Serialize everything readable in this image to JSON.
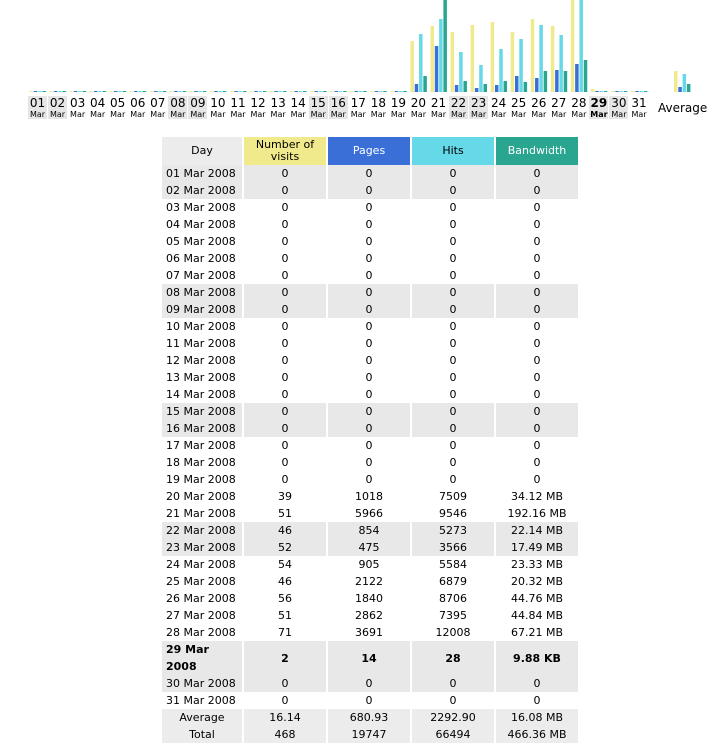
{
  "accent": {
    "visits": "#f0ea8c",
    "pages": "#3a6fd8",
    "hits": "#66d9e8",
    "bandwidth": "#2aa590"
  },
  "chart_data": {
    "type": "bar",
    "categories": [
      "01",
      "02",
      "03",
      "04",
      "05",
      "06",
      "07",
      "08",
      "09",
      "10",
      "11",
      "12",
      "13",
      "14",
      "15",
      "16",
      "17",
      "18",
      "19",
      "20",
      "21",
      "22",
      "23",
      "24",
      "25",
      "26",
      "27",
      "28",
      "29",
      "30",
      "31"
    ],
    "category_sub": "Mar",
    "series": [
      {
        "name": "Number of visits",
        "values": [
          0,
          0,
          0,
          0,
          0,
          0,
          0,
          0,
          0,
          0,
          0,
          0,
          0,
          0,
          0,
          0,
          0,
          0,
          0,
          39,
          51,
          46,
          52,
          54,
          46,
          56,
          51,
          71,
          2,
          0,
          0
        ]
      },
      {
        "name": "Pages",
        "values": [
          0,
          0,
          0,
          0,
          0,
          0,
          0,
          0,
          0,
          0,
          0,
          0,
          0,
          0,
          0,
          0,
          0,
          0,
          0,
          1018,
          5966,
          854,
          475,
          905,
          2122,
          1840,
          2862,
          3691,
          14,
          0,
          0
        ]
      },
      {
        "name": "Hits",
        "values": [
          0,
          0,
          0,
          0,
          0,
          0,
          0,
          0,
          0,
          0,
          0,
          0,
          0,
          0,
          0,
          0,
          0,
          0,
          0,
          7509,
          9546,
          5273,
          3566,
          5584,
          6879,
          8706,
          7395,
          12008,
          28,
          0,
          0
        ]
      },
      {
        "name": "Bandwidth",
        "values": [
          0,
          0,
          0,
          0,
          0,
          0,
          0,
          0,
          0,
          0,
          0,
          0,
          0,
          0,
          0,
          0,
          0,
          0,
          0,
          34.12,
          192.16,
          22.14,
          17.49,
          23.33,
          20.32,
          44.76,
          44.84,
          67.21,
          0.0096,
          0,
          0
        ]
      }
    ],
    "bandwidth_unit": "MB",
    "average": {
      "visits": 16.14,
      "pages": 680.93,
      "hits": 2292.9,
      "bandwidth": 16.08
    },
    "weekend_days": [
      "01",
      "02",
      "08",
      "09",
      "15",
      "16",
      "22",
      "23",
      "29",
      "30"
    ],
    "today": "29",
    "legend": "none",
    "grid": false
  },
  "avg_label": "Average",
  "table": {
    "headers": {
      "day": "Day",
      "visits": "Number of visits",
      "pages": "Pages",
      "hits": "Hits",
      "bandwidth": "Bandwidth"
    },
    "rows": [
      {
        "day": "01 Mar 2008",
        "visits": "0",
        "pages": "0",
        "hits": "0",
        "bandwidth": "0"
      },
      {
        "day": "02 Mar 2008",
        "visits": "0",
        "pages": "0",
        "hits": "0",
        "bandwidth": "0"
      },
      {
        "day": "03 Mar 2008",
        "visits": "0",
        "pages": "0",
        "hits": "0",
        "bandwidth": "0"
      },
      {
        "day": "04 Mar 2008",
        "visits": "0",
        "pages": "0",
        "hits": "0",
        "bandwidth": "0"
      },
      {
        "day": "05 Mar 2008",
        "visits": "0",
        "pages": "0",
        "hits": "0",
        "bandwidth": "0"
      },
      {
        "day": "06 Mar 2008",
        "visits": "0",
        "pages": "0",
        "hits": "0",
        "bandwidth": "0"
      },
      {
        "day": "07 Mar 2008",
        "visits": "0",
        "pages": "0",
        "hits": "0",
        "bandwidth": "0"
      },
      {
        "day": "08 Mar 2008",
        "visits": "0",
        "pages": "0",
        "hits": "0",
        "bandwidth": "0"
      },
      {
        "day": "09 Mar 2008",
        "visits": "0",
        "pages": "0",
        "hits": "0",
        "bandwidth": "0"
      },
      {
        "day": "10 Mar 2008",
        "visits": "0",
        "pages": "0",
        "hits": "0",
        "bandwidth": "0"
      },
      {
        "day": "11 Mar 2008",
        "visits": "0",
        "pages": "0",
        "hits": "0",
        "bandwidth": "0"
      },
      {
        "day": "12 Mar 2008",
        "visits": "0",
        "pages": "0",
        "hits": "0",
        "bandwidth": "0"
      },
      {
        "day": "13 Mar 2008",
        "visits": "0",
        "pages": "0",
        "hits": "0",
        "bandwidth": "0"
      },
      {
        "day": "14 Mar 2008",
        "visits": "0",
        "pages": "0",
        "hits": "0",
        "bandwidth": "0"
      },
      {
        "day": "15 Mar 2008",
        "visits": "0",
        "pages": "0",
        "hits": "0",
        "bandwidth": "0"
      },
      {
        "day": "16 Mar 2008",
        "visits": "0",
        "pages": "0",
        "hits": "0",
        "bandwidth": "0"
      },
      {
        "day": "17 Mar 2008",
        "visits": "0",
        "pages": "0",
        "hits": "0",
        "bandwidth": "0"
      },
      {
        "day": "18 Mar 2008",
        "visits": "0",
        "pages": "0",
        "hits": "0",
        "bandwidth": "0"
      },
      {
        "day": "19 Mar 2008",
        "visits": "0",
        "pages": "0",
        "hits": "0",
        "bandwidth": "0"
      },
      {
        "day": "20 Mar 2008",
        "visits": "39",
        "pages": "1018",
        "hits": "7509",
        "bandwidth": "34.12 MB"
      },
      {
        "day": "21 Mar 2008",
        "visits": "51",
        "pages": "5966",
        "hits": "9546",
        "bandwidth": "192.16 MB"
      },
      {
        "day": "22 Mar 2008",
        "visits": "46",
        "pages": "854",
        "hits": "5273",
        "bandwidth": "22.14 MB"
      },
      {
        "day": "23 Mar 2008",
        "visits": "52",
        "pages": "475",
        "hits": "3566",
        "bandwidth": "17.49 MB"
      },
      {
        "day": "24 Mar 2008",
        "visits": "54",
        "pages": "905",
        "hits": "5584",
        "bandwidth": "23.33 MB"
      },
      {
        "day": "25 Mar 2008",
        "visits": "46",
        "pages": "2122",
        "hits": "6879",
        "bandwidth": "20.32 MB"
      },
      {
        "day": "26 Mar 2008",
        "visits": "56",
        "pages": "1840",
        "hits": "8706",
        "bandwidth": "44.76 MB"
      },
      {
        "day": "27 Mar 2008",
        "visits": "51",
        "pages": "2862",
        "hits": "7395",
        "bandwidth": "44.84 MB"
      },
      {
        "day": "28 Mar 2008",
        "visits": "71",
        "pages": "3691",
        "hits": "12008",
        "bandwidth": "67.21 MB"
      },
      {
        "day": "29 Mar 2008",
        "visits": "2",
        "pages": "14",
        "hits": "28",
        "bandwidth": "9.88 KB"
      },
      {
        "day": "30 Mar 2008",
        "visits": "0",
        "pages": "0",
        "hits": "0",
        "bandwidth": "0"
      },
      {
        "day": "31 Mar 2008",
        "visits": "0",
        "pages": "0",
        "hits": "0",
        "bandwidth": "0"
      }
    ],
    "average": {
      "label": "Average",
      "visits": "16.14",
      "pages": "680.93",
      "hits": "2292.90",
      "bandwidth": "16.08 MB"
    },
    "total": {
      "label": "Total",
      "visits": "468",
      "pages": "19747",
      "hits": "66494",
      "bandwidth": "466.36 MB"
    }
  }
}
